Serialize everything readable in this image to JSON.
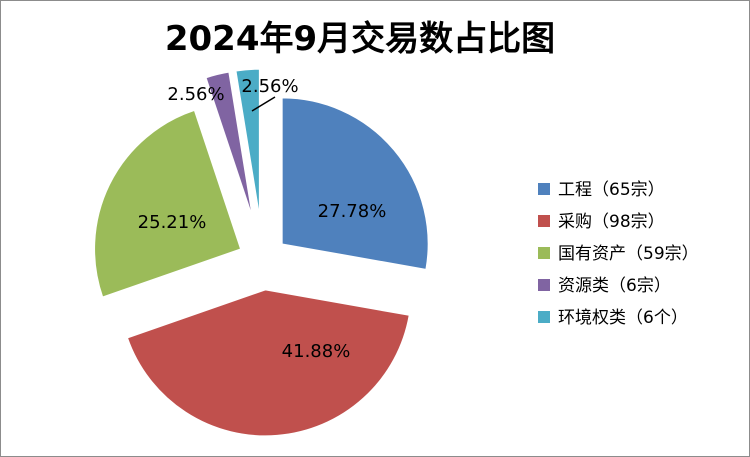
{
  "chart_data": {
    "type": "pie",
    "title": "2024年9月交易数占比图",
    "slices": [
      {
        "label": "工程（65宗）",
        "value": 27.78,
        "display": "27.78%",
        "color": "#4F81BD"
      },
      {
        "label": "采购（98宗）",
        "value": 41.88,
        "display": "41.88%",
        "color": "#C0504D"
      },
      {
        "label": "国有资产（59宗）",
        "value": 25.21,
        "display": "25.21%",
        "color": "#9BBB59"
      },
      {
        "label": "资源类（6宗）",
        "value": 2.56,
        "display": "2.56%",
        "color": "#8064A2"
      },
      {
        "label": "环境权类（6个）",
        "value": 2.56,
        "display": "2.56%",
        "color": "#4BACC6"
      }
    ],
    "legend": "right",
    "exploded": true
  }
}
